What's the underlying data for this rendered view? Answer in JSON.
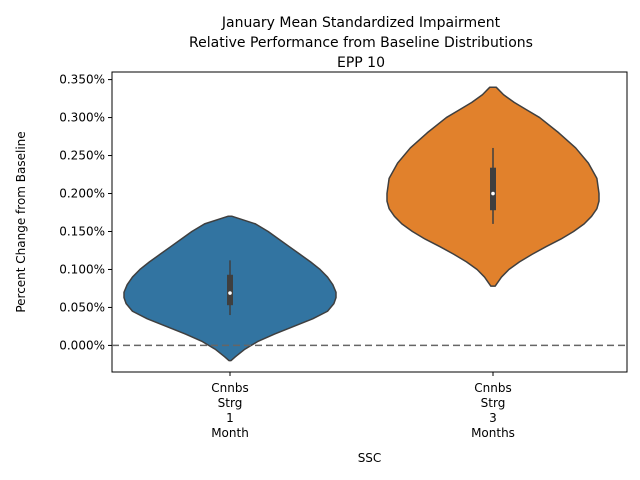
{
  "chart_data": {
    "type": "violin",
    "title_lines": [
      "January Mean Standardized Impairment",
      "Relative Performance from Baseline Distributions",
      "EPP 10"
    ],
    "xlabel": "SSC",
    "ylabel": "Percent Change from Baseline",
    "ylim": [
      -0.035,
      0.36
    ],
    "yticks": [
      0.0,
      0.05,
      0.1,
      0.15,
      0.2,
      0.25,
      0.3,
      0.35
    ],
    "ytick_labels": [
      "0.000%",
      "0.050%",
      "0.100%",
      "0.150%",
      "0.200%",
      "0.250%",
      "0.300%",
      "0.350%"
    ],
    "reference_line": {
      "y": 0.0,
      "style": "dashed",
      "color": "#666666"
    },
    "categories": [
      {
        "label_lines": [
          "Cnnbs",
          "Strg",
          "1",
          "Month"
        ]
      },
      {
        "label_lines": [
          "Cnnbs",
          "Strg",
          "3",
          "Months"
        ]
      }
    ],
    "series": [
      {
        "color": "#3274a1",
        "whisker": [
          0.04,
          0.112
        ],
        "quartiles": [
          0.053,
          0.093
        ],
        "median": 0.069,
        "profile": [
          [
            0.17,
            0.02
          ],
          [
            0.16,
            0.24
          ],
          [
            0.15,
            0.36
          ],
          [
            0.14,
            0.46
          ],
          [
            0.13,
            0.56
          ],
          [
            0.12,
            0.66
          ],
          [
            0.11,
            0.76
          ],
          [
            0.1,
            0.85
          ],
          [
            0.09,
            0.92
          ],
          [
            0.08,
            0.97
          ],
          [
            0.07,
            1.0
          ],
          [
            0.063,
            1.0
          ],
          [
            0.055,
            0.98
          ],
          [
            0.045,
            0.92
          ],
          [
            0.035,
            0.78
          ],
          [
            0.025,
            0.6
          ],
          [
            0.015,
            0.42
          ],
          [
            0.005,
            0.26
          ],
          [
            -0.005,
            0.14
          ],
          [
            -0.015,
            0.05
          ],
          [
            -0.02,
            0.01
          ]
        ]
      },
      {
        "color": "#e1812c",
        "whisker": [
          0.16,
          0.26
        ],
        "quartiles": [
          0.178,
          0.234
        ],
        "median": 0.2,
        "profile": [
          [
            0.34,
            0.03
          ],
          [
            0.33,
            0.1
          ],
          [
            0.32,
            0.2
          ],
          [
            0.31,
            0.32
          ],
          [
            0.3,
            0.44
          ],
          [
            0.28,
            0.62
          ],
          [
            0.26,
            0.78
          ],
          [
            0.24,
            0.9
          ],
          [
            0.22,
            0.98
          ],
          [
            0.2,
            1.0
          ],
          [
            0.19,
            1.0
          ],
          [
            0.18,
            0.98
          ],
          [
            0.17,
            0.93
          ],
          [
            0.16,
            0.86
          ],
          [
            0.15,
            0.76
          ],
          [
            0.14,
            0.64
          ],
          [
            0.13,
            0.5
          ],
          [
            0.12,
            0.37
          ],
          [
            0.11,
            0.25
          ],
          [
            0.1,
            0.15
          ],
          [
            0.09,
            0.08
          ],
          [
            0.078,
            0.02
          ]
        ]
      }
    ]
  }
}
